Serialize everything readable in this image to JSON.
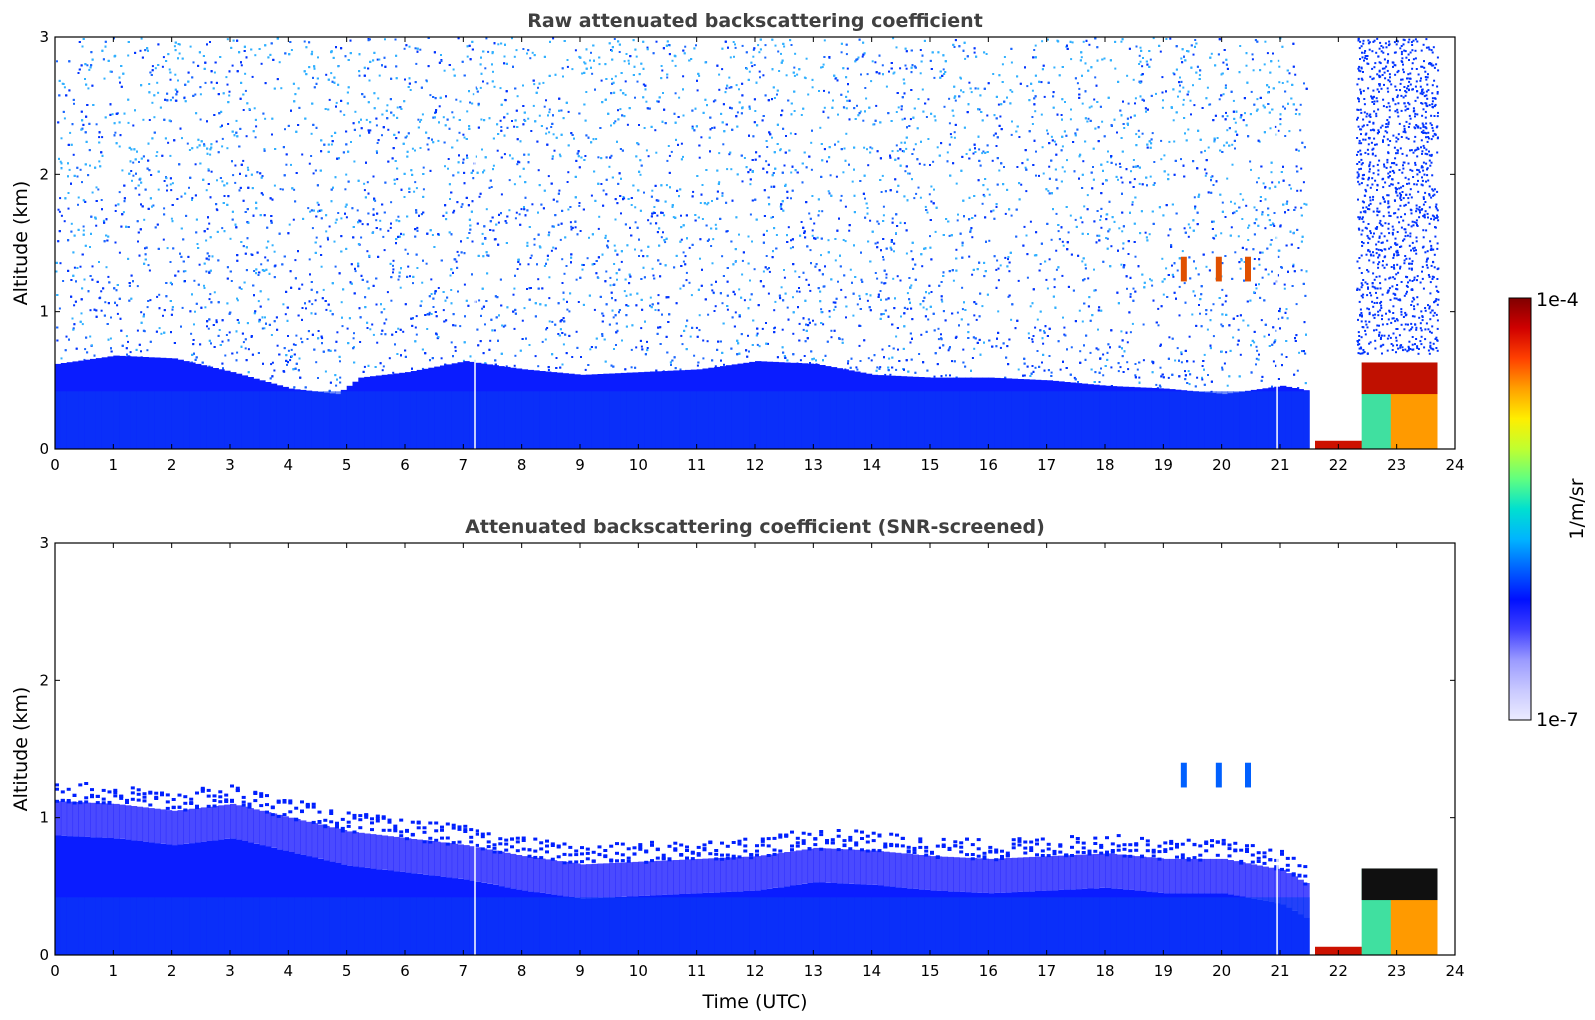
{
  "chart_data": [
    {
      "type": "heatmap",
      "title": "Raw attenuated backscattering coefficient",
      "xlabel": "",
      "ylabel": "Altitude (km)",
      "xlim": [
        0,
        24
      ],
      "ylim": [
        0,
        3
      ],
      "x_ticks": [
        "0",
        "1",
        "2",
        "3",
        "4",
        "5",
        "6",
        "7",
        "8",
        "9",
        "10",
        "11",
        "12",
        "13",
        "14",
        "15",
        "16",
        "17",
        "18",
        "19",
        "20",
        "21",
        "22",
        "23",
        "24"
      ],
      "y_ticks": [
        "0",
        "1",
        "2",
        "3"
      ],
      "grid": false,
      "data_end_time": 23.7,
      "gap_times": [
        7.2,
        20.95
      ],
      "boundary_layer_top_km": [
        [
          0,
          0.62
        ],
        [
          1,
          0.68
        ],
        [
          2,
          0.66
        ],
        [
          3,
          0.56
        ],
        [
          4,
          0.44
        ],
        [
          4.8,
          0.4
        ],
        [
          5.2,
          0.52
        ],
        [
          6,
          0.56
        ],
        [
          7,
          0.64
        ],
        [
          8,
          0.58
        ],
        [
          9,
          0.54
        ],
        [
          10,
          0.56
        ],
        [
          11,
          0.58
        ],
        [
          12,
          0.64
        ],
        [
          13,
          0.62
        ],
        [
          14,
          0.54
        ],
        [
          15,
          0.52
        ],
        [
          16,
          0.52
        ],
        [
          17,
          0.5
        ],
        [
          18,
          0.46
        ],
        [
          19,
          0.44
        ],
        [
          20,
          0.4
        ],
        [
          21,
          0.46
        ],
        [
          21.5,
          0.42
        ]
      ],
      "low_cloud": {
        "start": 22.4,
        "end": 23.7,
        "base_km": 0.4,
        "top_km": 0.63
      },
      "fog_layer": {
        "start": 21.6,
        "end": 22.6,
        "height_km": 0.06
      },
      "elevated_cloud": {
        "start": 19.3,
        "end": 20.5,
        "base_km": 1.22,
        "top_km": 1.4
      }
    },
    {
      "type": "heatmap",
      "title": "Attenuated backscattering coefficient (SNR-screened)",
      "xlabel": "Time (UTC)",
      "ylabel": "Altitude (km)",
      "xlim": [
        0,
        24
      ],
      "ylim": [
        0,
        3
      ],
      "x_ticks": [
        "0",
        "1",
        "2",
        "3",
        "4",
        "5",
        "6",
        "7",
        "8",
        "9",
        "10",
        "11",
        "12",
        "13",
        "14",
        "15",
        "16",
        "17",
        "18",
        "19",
        "20",
        "21",
        "22",
        "23",
        "24"
      ],
      "y_ticks": [
        "0",
        "1",
        "2",
        "3"
      ],
      "grid": false,
      "data_end_time": 23.7,
      "gap_times": [
        7.2,
        20.95
      ],
      "screened_top_km": [
        [
          0,
          1.12
        ],
        [
          1,
          1.1
        ],
        [
          2,
          1.05
        ],
        [
          3,
          1.1
        ],
        [
          4,
          1.0
        ],
        [
          5,
          0.9
        ],
        [
          6,
          0.85
        ],
        [
          7,
          0.8
        ],
        [
          8,
          0.72
        ],
        [
          9,
          0.66
        ],
        [
          10,
          0.68
        ],
        [
          11,
          0.7
        ],
        [
          12,
          0.72
        ],
        [
          13,
          0.78
        ],
        [
          14,
          0.76
        ],
        [
          15,
          0.72
        ],
        [
          16,
          0.7
        ],
        [
          17,
          0.72
        ],
        [
          18,
          0.74
        ],
        [
          19,
          0.7
        ],
        [
          20,
          0.7
        ],
        [
          21,
          0.62
        ],
        [
          21.5,
          0.5
        ]
      ],
      "low_cloud": {
        "start": 22.4,
        "end": 23.7,
        "base_km": 0.4,
        "top_km": 0.63
      },
      "fog_layer": {
        "start": 21.6,
        "end": 22.6,
        "height_km": 0.06
      },
      "elevated_cloud": {
        "start": 19.3,
        "end": 20.5,
        "base_km": 1.22,
        "top_km": 1.4
      }
    }
  ],
  "colorbar": {
    "label": "1/m/sr",
    "max_label": "1e-4",
    "min_label": "1e-7",
    "scale": "log",
    "colors": [
      "#ececff",
      "#c8c8ff",
      "#9a9aff",
      "#4040ff",
      "#0010ff",
      "#0060ff",
      "#00b4ff",
      "#00e0d0",
      "#60ff80",
      "#c0ff30",
      "#ffee00",
      "#ffa000",
      "#ff4000",
      "#d00000",
      "#800000"
    ]
  }
}
